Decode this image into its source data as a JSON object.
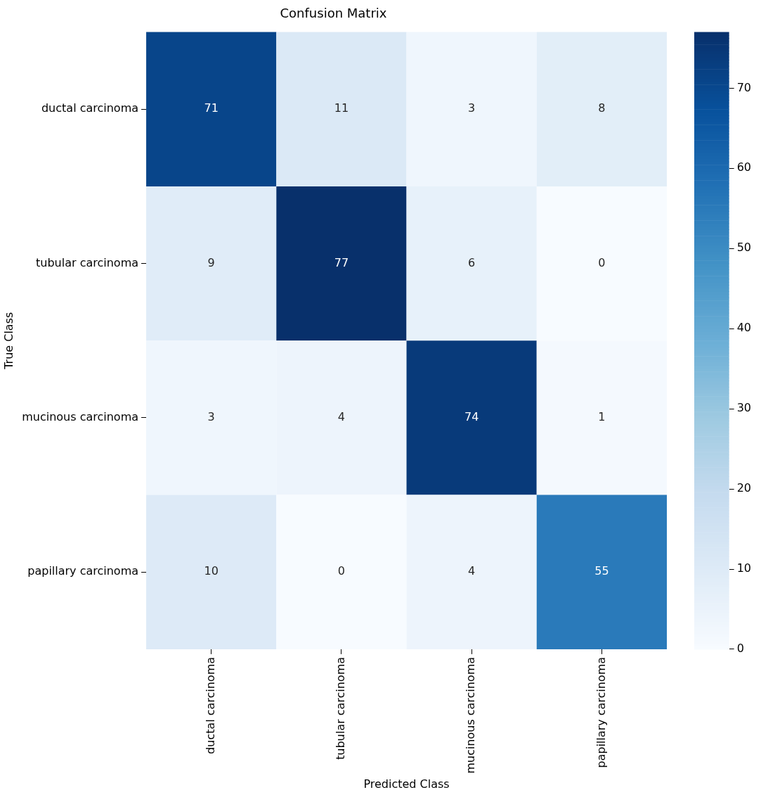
{
  "chart_data": {
    "type": "heatmap",
    "title": "Confusion Matrix",
    "xlabel": "Predicted Class",
    "ylabel": "True Class",
    "categories": [
      "ductal carcinoma",
      "tubular carcinoma",
      "mucinous carcinoma",
      "papillary carcinoma"
    ],
    "y_categories": [
      "ductal carcinoma",
      "tubular carcinoma",
      "mucinous carcinoma",
      "papillary carcinoma"
    ],
    "cells": [
      [
        71,
        11,
        3,
        8
      ],
      [
        9,
        77,
        6,
        0
      ],
      [
        3,
        4,
        74,
        1
      ],
      [
        10,
        0,
        4,
        55
      ]
    ],
    "data_labels": true,
    "clim": [
      0,
      77
    ],
    "cticks": [
      0,
      10,
      20,
      30,
      40,
      50,
      60,
      70
    ]
  }
}
